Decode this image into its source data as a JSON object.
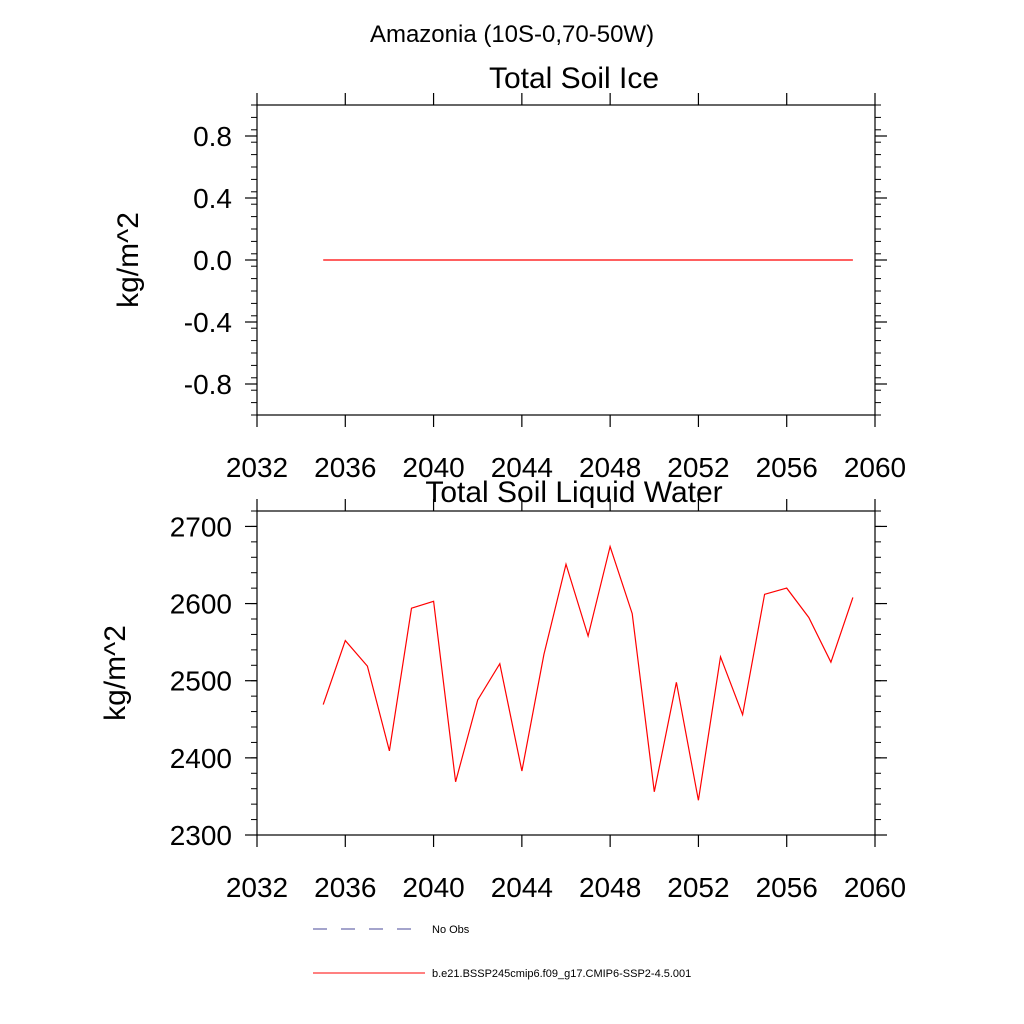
{
  "figure": {
    "main_title": "Amazonia (10S-0,70-50W)"
  },
  "legend": {
    "entries": [
      {
        "label": "No Obs",
        "color": "#4a4a9a",
        "style": "dashed"
      },
      {
        "label": "b.e21.BSSP245cmip6.f09_g17.CMIP6-SSP2-4.5.001",
        "color": "#ff0000",
        "style": "solid"
      }
    ]
  },
  "chart_data": [
    {
      "type": "line",
      "title": "Total Soil Ice",
      "xlabel": "",
      "ylabel": "kg/m^2",
      "xlim": [
        2032,
        2060
      ],
      "ylim": [
        -1.0,
        1.0
      ],
      "x_ticks": [
        2032,
        2036,
        2040,
        2044,
        2048,
        2052,
        2056,
        2060
      ],
      "x_tick_labels": [
        "2032",
        "2036",
        "2040",
        "2044",
        "2048",
        "2052",
        "2056",
        "2060"
      ],
      "y_ticks": [
        -0.8,
        -0.4,
        0.0,
        0.4,
        0.8
      ],
      "y_tick_labels": [
        "-0.8",
        "-0.4",
        "0.0",
        "0.4",
        "0.8"
      ],
      "grid": false,
      "series": [
        {
          "name": "b.e21.BSSP245cmip6.f09_g17.CMIP6-SSP2-4.5.001",
          "color": "#ff0000",
          "x": [
            2035,
            2036,
            2037,
            2038,
            2039,
            2040,
            2041,
            2042,
            2043,
            2044,
            2045,
            2046,
            2047,
            2048,
            2049,
            2050,
            2051,
            2052,
            2053,
            2054,
            2055,
            2056,
            2057,
            2058,
            2059
          ],
          "y": [
            0,
            0,
            0,
            0,
            0,
            0,
            0,
            0,
            0,
            0,
            0,
            0,
            0,
            0,
            0,
            0,
            0,
            0,
            0,
            0,
            0,
            0,
            0,
            0,
            0
          ]
        }
      ]
    },
    {
      "type": "line",
      "title": "Total Soil Liquid Water",
      "xlabel": "",
      "ylabel": "kg/m^2",
      "xlim": [
        2032,
        2060
      ],
      "ylim": [
        2300,
        2720
      ],
      "x_ticks": [
        2032,
        2036,
        2040,
        2044,
        2048,
        2052,
        2056,
        2060
      ],
      "x_tick_labels": [
        "2032",
        "2036",
        "2040",
        "2044",
        "2048",
        "2052",
        "2056",
        "2060"
      ],
      "y_ticks": [
        2300,
        2400,
        2500,
        2600,
        2700
      ],
      "y_tick_labels": [
        "2300",
        "2400",
        "2500",
        "2600",
        "2700"
      ],
      "grid": false,
      "series": [
        {
          "name": "b.e21.BSSP245cmip6.f09_g17.CMIP6-SSP2-4.5.001",
          "color": "#ff0000",
          "x": [
            2035,
            2036,
            2037,
            2038,
            2039,
            2040,
            2041,
            2042,
            2043,
            2044,
            2045,
            2046,
            2047,
            2048,
            2049,
            2050,
            2051,
            2052,
            2053,
            2054,
            2055,
            2056,
            2057,
            2058,
            2059
          ],
          "y": [
            2469,
            2552,
            2519,
            2409,
            2594,
            2603,
            2369,
            2475,
            2522,
            2383,
            2534,
            2651,
            2558,
            2674,
            2587,
            2356,
            2498,
            2345,
            2531,
            2456,
            2612,
            2620,
            2582,
            2524,
            2608
          ]
        }
      ]
    }
  ]
}
